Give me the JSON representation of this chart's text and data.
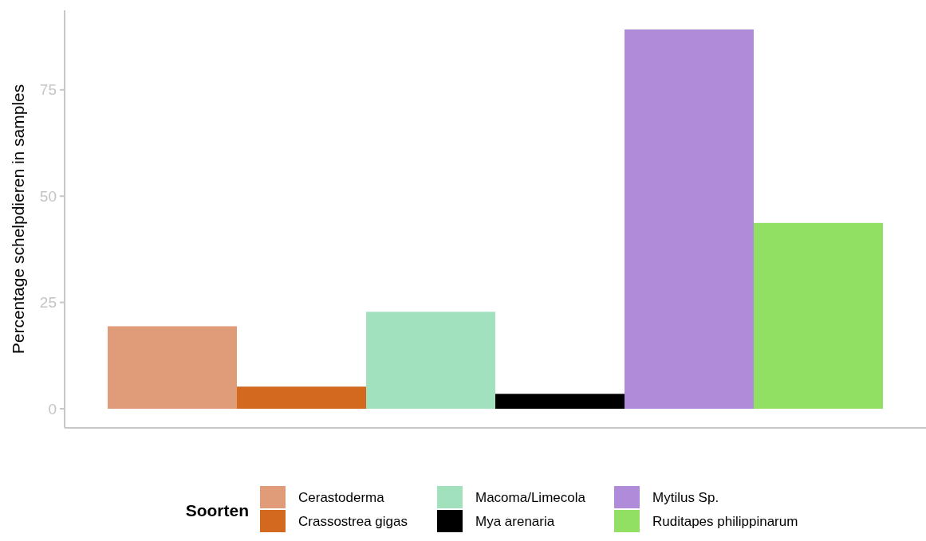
{
  "chart_data": {
    "type": "bar",
    "ylabel": "Percentage schelpdieren in samples",
    "legend_title": "Soorten",
    "legend": "bottom",
    "grid": false,
    "categories": [
      null
    ],
    "ylim": [
      -4.5,
      93.7
    ],
    "yticks": [
      0,
      25,
      50,
      75
    ],
    "series": [
      {
        "name": "Cerastoderma",
        "color": "#e09b78",
        "values": [
          19.4
        ]
      },
      {
        "name": "Crassostrea gigas",
        "color": "#d2691e",
        "values": [
          5.2
        ]
      },
      {
        "name": "Macoma/Limecola",
        "color": "#a1e1be",
        "values": [
          22.8
        ]
      },
      {
        "name": "Mya arenaria",
        "color": "#000000",
        "values": [
          3.5
        ]
      },
      {
        "name": "Mytilus Sp.",
        "color": "#b08bd9",
        "values": [
          89.2
        ]
      },
      {
        "name": "Ruditapes philippinarum",
        "color": "#92e063",
        "values": [
          43.7
        ]
      }
    ]
  }
}
